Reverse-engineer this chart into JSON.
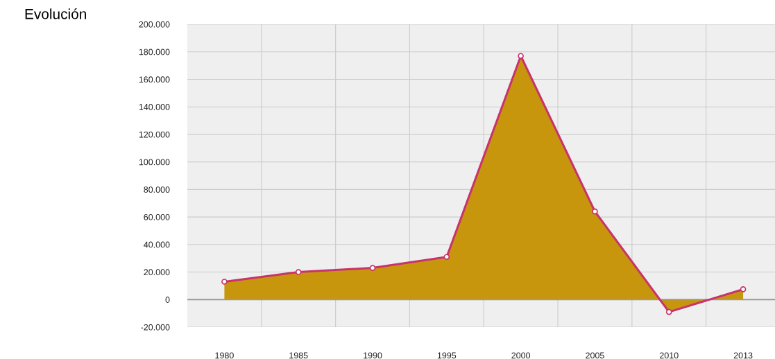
{
  "chart_data": {
    "type": "area",
    "title": "Evolución",
    "categories": [
      "1980",
      "1985",
      "1990",
      "1995",
      "2000",
      "2005",
      "2010",
      "2013"
    ],
    "series": [
      {
        "color": "#c8336b",
        "colors": [
          "#c8960c",
          "#c8960c",
          "#c8960c",
          "#c8960c",
          "#c8960c",
          "#c8960c",
          "#c8960c",
          "#c8960c"
        ],
        "values": [
          13000,
          20000,
          23000,
          31000,
          177000,
          64000,
          -9000,
          7500
        ]
      }
    ],
    "ylim": [
      -20000,
      200000
    ],
    "yticks": [
      {
        "value": -20000,
        "label": "-20.000"
      },
      {
        "value": 0,
        "label": "0"
      },
      {
        "value": 20000,
        "label": "20.000"
      },
      {
        "value": 40000,
        "label": "40.000"
      },
      {
        "value": 60000,
        "label": "60.000"
      },
      {
        "value": 80000,
        "label": "80.000"
      },
      {
        "value": 100000,
        "label": "100.000"
      },
      {
        "value": 120000,
        "label": "120.000"
      },
      {
        "value": 140000,
        "label": "140.000"
      },
      {
        "value": 160000,
        "label": "160.000"
      },
      {
        "value": 180000,
        "label": "180.000"
      },
      {
        "value": 200000,
        "label": "200.000"
      }
    ],
    "ref_lines": [
      {
        "axis": "y",
        "value": 0,
        "color": "#999999"
      }
    ],
    "grid": true,
    "marker": "circle",
    "legend": false
  }
}
